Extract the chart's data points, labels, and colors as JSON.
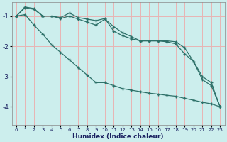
{
  "xlabel": "Humidex (Indice chaleur)",
  "bg_color": "#cceeed",
  "grid_color_v": "#e8b4b4",
  "grid_color_h": "#e8b4b4",
  "line_color": "#2d7068",
  "xlim": [
    -0.5,
    23.5
  ],
  "ylim": [
    -4.6,
    -0.55
  ],
  "yticks": [
    -4,
    -3,
    -2,
    -1
  ],
  "xticks": [
    0,
    1,
    2,
    3,
    4,
    5,
    6,
    7,
    8,
    9,
    10,
    11,
    12,
    13,
    14,
    15,
    16,
    17,
    18,
    19,
    20,
    21,
    22,
    23
  ],
  "line1_x": [
    0,
    1,
    2,
    3,
    4,
    5,
    6,
    7,
    8,
    9,
    10,
    11,
    12,
    13,
    14,
    15,
    16,
    17,
    18,
    19,
    20,
    21,
    22,
    23
  ],
  "line1_y": [
    -1.0,
    -0.7,
    -0.75,
    -1.0,
    -1.0,
    -1.05,
    -0.9,
    -1.05,
    -1.1,
    -1.15,
    -1.08,
    -1.5,
    -1.65,
    -1.75,
    -1.82,
    -1.82,
    -1.82,
    -1.82,
    -1.85,
    -2.05,
    -2.5,
    -3.1,
    -3.3,
    -4.0
  ],
  "line2_x": [
    0,
    1,
    2,
    3,
    4,
    5,
    6,
    7,
    8,
    9,
    10,
    11,
    12,
    13,
    14,
    15,
    16,
    17,
    18,
    19,
    20,
    21,
    22,
    23
  ],
  "line2_y": [
    -1.0,
    -0.72,
    -0.78,
    -1.0,
    -1.0,
    -1.08,
    -1.0,
    -1.1,
    -1.2,
    -1.3,
    -1.1,
    -1.35,
    -1.55,
    -1.68,
    -1.82,
    -1.82,
    -1.82,
    -1.85,
    -1.92,
    -2.25,
    -2.5,
    -3.0,
    -3.2,
    -4.0
  ],
  "line3_x": [
    0,
    1,
    2,
    3,
    4,
    5,
    6,
    7,
    8,
    9,
    10,
    11,
    12,
    13,
    14,
    15,
    16,
    17,
    18,
    19,
    20,
    21,
    22,
    23
  ],
  "line3_y": [
    -1.0,
    -0.95,
    -1.3,
    -1.6,
    -1.95,
    -2.2,
    -2.45,
    -2.7,
    -2.95,
    -3.2,
    -3.2,
    -3.3,
    -3.4,
    -3.45,
    -3.5,
    -3.55,
    -3.58,
    -3.62,
    -3.65,
    -3.72,
    -3.78,
    -3.85,
    -3.9,
    -4.0
  ]
}
